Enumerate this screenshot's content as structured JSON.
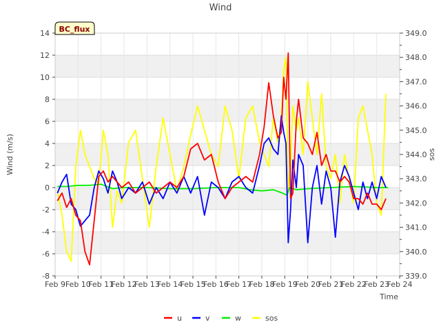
{
  "chart_data": {
    "type": "line",
    "title": "Wind",
    "xlabel": "Time",
    "ylabel": "Wind (m/s)",
    "y2label": "sos",
    "badge": "BC_flux",
    "x_start": "Feb 9",
    "x_end": "Feb 24",
    "xlim": [
      9,
      24
    ],
    "ylim": [
      -8,
      14
    ],
    "y2lim": [
      339.0,
      349.0
    ],
    "x_tick_values": [
      9,
      10,
      11,
      12,
      13,
      14,
      15,
      16,
      17,
      18,
      19,
      20,
      21,
      22,
      23,
      24
    ],
    "x_tick_labels": [
      "Feb 9",
      "Feb 10",
      "Feb 11",
      "Feb 12",
      "Feb 13",
      "Feb 14",
      "Feb 15",
      "Feb 16",
      "Feb 17",
      "Feb 18",
      "Feb 19",
      "Feb 20",
      "Feb 21",
      "Feb 22",
      "Feb 23",
      "Feb 24"
    ],
    "y_tick_values": [
      -8,
      -6,
      -4,
      -2,
      0,
      2,
      4,
      6,
      8,
      10,
      12,
      14
    ],
    "y_tick_labels": [
      "-8",
      "-6",
      "-4",
      "-2",
      "0",
      "2",
      "4",
      "6",
      "8",
      "10",
      "12",
      "14"
    ],
    "y2_tick_values": [
      339,
      340,
      341,
      342,
      343,
      344,
      345,
      346,
      347,
      348,
      349
    ],
    "y2_tick_labels": [
      "339.0",
      "340.0",
      "341.0",
      "342.0",
      "343.0",
      "344.0",
      "345.0",
      "346.0",
      "347.0",
      "348.0",
      "349.0"
    ],
    "legend_position": "bottom-center",
    "series": [
      {
        "name": "u",
        "color": "#ff0000",
        "axis": "left",
        "x": [
          9.1,
          9.3,
          9.5,
          9.7,
          9.9,
          10.1,
          10.3,
          10.5,
          10.7,
          10.9,
          11.1,
          11.3,
          11.5,
          11.7,
          11.9,
          12.2,
          12.5,
          12.8,
          13.1,
          13.4,
          13.7,
          14.0,
          14.3,
          14.6,
          14.9,
          15.2,
          15.5,
          15.8,
          16.1,
          16.4,
          16.7,
          17.0,
          17.3,
          17.6,
          17.9,
          18.1,
          18.3,
          18.5,
          18.7,
          18.85,
          18.95,
          19.05,
          19.15,
          19.25,
          19.35,
          19.5,
          19.6,
          19.8,
          20.0,
          20.2,
          20.4,
          20.6,
          20.8,
          21.0,
          21.2,
          21.4,
          21.6,
          21.8,
          22.0,
          22.2,
          22.4,
          22.6,
          22.8,
          23.0,
          23.2,
          23.4
        ],
        "values": [
          -1.2,
          -0.5,
          -1.8,
          -1.0,
          -2.5,
          -3.0,
          -5.8,
          -7.0,
          -3.0,
          1.0,
          1.5,
          0.5,
          1.0,
          0.5,
          0.0,
          0.5,
          -0.5,
          0.0,
          0.5,
          -0.5,
          0.0,
          0.5,
          0.0,
          1.0,
          3.5,
          4.0,
          2.5,
          3.0,
          0.5,
          -1.0,
          0.0,
          0.5,
          1.0,
          0.5,
          3.0,
          5.5,
          9.5,
          6.5,
          4.5,
          5.0,
          10.0,
          8.0,
          12.2,
          -1.0,
          -0.5,
          6.0,
          8.0,
          4.5,
          4.0,
          3.0,
          5.0,
          2.0,
          3.0,
          1.5,
          1.5,
          0.5,
          1.0,
          0.5,
          -1.0,
          -1.0,
          -1.5,
          -0.5,
          -1.5,
          -1.5,
          -2.0,
          -1.0
        ]
      },
      {
        "name": "v",
        "color": "#0000ff",
        "axis": "left",
        "x": [
          9.1,
          9.3,
          9.5,
          9.7,
          9.9,
          10.1,
          10.3,
          10.5,
          10.7,
          10.9,
          11.1,
          11.3,
          11.5,
          11.7,
          11.9,
          12.2,
          12.5,
          12.8,
          13.1,
          13.4,
          13.7,
          14.0,
          14.3,
          14.6,
          14.9,
          15.2,
          15.5,
          15.8,
          16.1,
          16.4,
          16.7,
          17.0,
          17.3,
          17.6,
          17.9,
          18.1,
          18.3,
          18.5,
          18.7,
          18.85,
          18.95,
          19.05,
          19.15,
          19.25,
          19.35,
          19.5,
          19.6,
          19.8,
          20.0,
          20.2,
          20.4,
          20.6,
          20.8,
          21.0,
          21.2,
          21.4,
          21.6,
          21.8,
          22.0,
          22.2,
          22.4,
          22.6,
          22.8,
          23.0,
          23.2,
          23.4
        ],
        "values": [
          -0.5,
          0.5,
          1.2,
          -1.5,
          -2.0,
          -3.5,
          -3.0,
          -2.5,
          0.0,
          1.5,
          0.8,
          -0.5,
          1.5,
          0.5,
          -1.0,
          0.0,
          -0.5,
          0.5,
          -1.5,
          0.0,
          -1.0,
          0.5,
          -0.5,
          1.0,
          -0.5,
          1.0,
          -2.5,
          0.5,
          0.0,
          -1.0,
          0.5,
          1.0,
          0.0,
          -0.5,
          2.0,
          4.0,
          4.5,
          3.5,
          3.0,
          6.5,
          5.0,
          4.0,
          -5.0,
          -2.0,
          2.5,
          0.0,
          3.0,
          2.0,
          -5.0,
          0.0,
          2.0,
          -1.5,
          1.5,
          0.0,
          -4.5,
          0.5,
          2.0,
          1.0,
          -0.5,
          -2.0,
          0.5,
          -1.0,
          0.5,
          -1.0,
          1.0,
          0.0
        ]
      },
      {
        "name": "w",
        "color": "#00ee00",
        "axis": "left",
        "x": [
          9.1,
          9.5,
          10.0,
          10.5,
          11.0,
          11.5,
          12.0,
          13.0,
          14.0,
          15.0,
          16.0,
          17.0,
          17.5,
          18.0,
          18.5,
          18.9,
          19.1,
          19.2,
          19.5,
          20.0,
          21.0,
          22.0,
          23.0,
          23.5
        ],
        "values": [
          0.1,
          0.1,
          0.2,
          0.2,
          0.3,
          -0.1,
          0.0,
          0.0,
          -0.1,
          -0.1,
          0.0,
          0.0,
          -0.2,
          -0.3,
          -0.2,
          -0.5,
          -0.7,
          0.0,
          -0.2,
          -0.1,
          0.0,
          0.1,
          0.0,
          0.0
        ]
      },
      {
        "name": "sos",
        "color": "#ffff00",
        "axis": "right",
        "x": [
          9.1,
          9.3,
          9.5,
          9.7,
          9.9,
          10.1,
          10.3,
          10.5,
          10.7,
          10.9,
          11.1,
          11.3,
          11.5,
          11.7,
          11.9,
          12.2,
          12.5,
          12.8,
          13.1,
          13.4,
          13.7,
          14.0,
          14.3,
          14.6,
          14.9,
          15.2,
          15.5,
          15.8,
          16.1,
          16.4,
          16.7,
          17.0,
          17.3,
          17.6,
          17.9,
          18.1,
          18.3,
          18.5,
          18.7,
          18.85,
          18.95,
          19.05,
          19.15,
          19.25,
          19.35,
          19.5,
          19.6,
          19.8,
          20.0,
          20.2,
          20.4,
          20.6,
          20.8,
          21.0,
          21.2,
          21.4,
          21.6,
          21.8,
          22.0,
          22.2,
          22.4,
          22.6,
          22.8,
          23.0,
          23.2,
          23.4
        ],
        "values": [
          342.5,
          341.5,
          340.0,
          339.6,
          343.5,
          345.0,
          344.0,
          343.5,
          343.0,
          342.8,
          345.0,
          344.0,
          341.0,
          342.5,
          342.0,
          344.5,
          345.0,
          343.0,
          341.0,
          343.5,
          345.5,
          344.0,
          342.5,
          343.5,
          344.8,
          346.0,
          345.0,
          344.0,
          343.5,
          346.0,
          345.0,
          343.0,
          345.5,
          346.0,
          344.5,
          344.0,
          343.5,
          345.5,
          344.5,
          345.5,
          347.5,
          348.0,
          342.5,
          343.5,
          346.0,
          345.0,
          345.5,
          344.0,
          347.0,
          345.5,
          344.0,
          346.5,
          343.5,
          343.0,
          344.0,
          342.0,
          344.0,
          343.0,
          342.0,
          345.5,
          346.0,
          345.0,
          344.0,
          342.0,
          341.5,
          346.5
        ]
      }
    ]
  }
}
